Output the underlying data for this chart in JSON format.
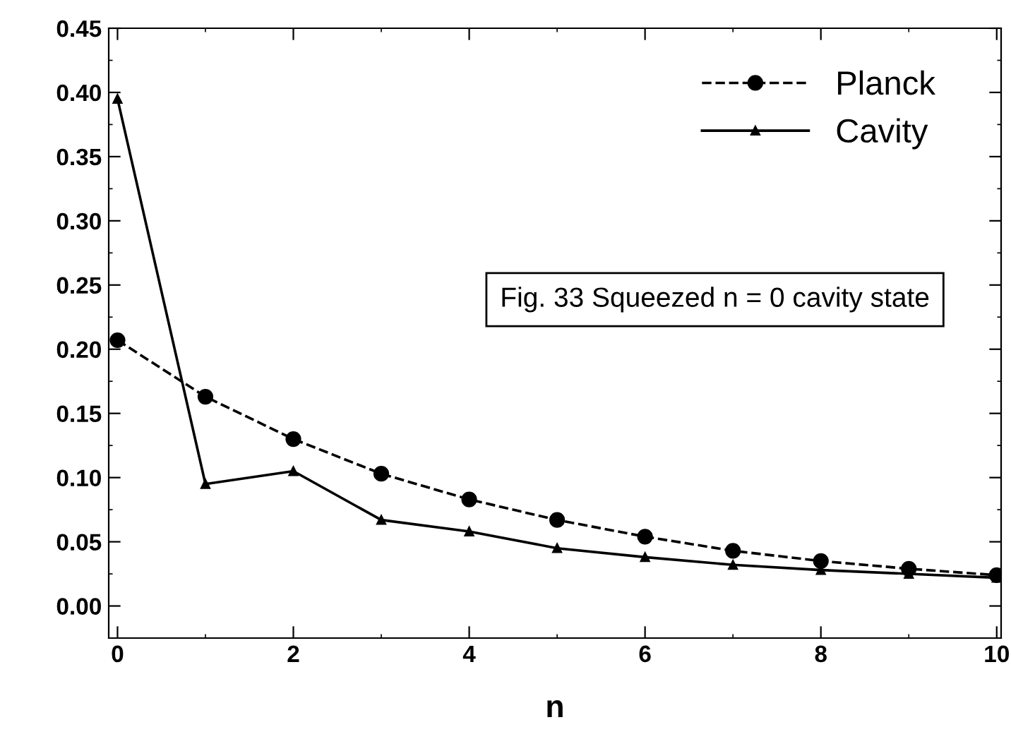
{
  "chart_data": {
    "type": "line",
    "xlabel": "n",
    "x": [
      0,
      1,
      2,
      3,
      4,
      5,
      6,
      7,
      8,
      9,
      10
    ],
    "series": [
      {
        "name": "Planck",
        "color": "#000000",
        "line_style": "dashed",
        "marker": "circle",
        "values": [
          0.207,
          0.163,
          0.13,
          0.103,
          0.083,
          0.067,
          0.054,
          0.043,
          0.035,
          0.029,
          0.024
        ]
      },
      {
        "name": "Cavity",
        "color": "#000000",
        "line_style": "solid",
        "marker": "triangle",
        "values": [
          0.395,
          0.095,
          0.105,
          0.067,
          0.058,
          0.045,
          0.038,
          0.032,
          0.028,
          0.025,
          0.022
        ]
      }
    ],
    "xlim": [
      -0.1,
      10.05
    ],
    "xticks": [
      0,
      2,
      4,
      6,
      8,
      10
    ],
    "ylim": [
      -0.025,
      0.45
    ],
    "yticks": [
      {
        "value": 0,
        "label": "0.00"
      },
      {
        "value": 0.05,
        "label": "0.05"
      },
      {
        "value": 0.1,
        "label": "0.10"
      },
      {
        "value": 0.15,
        "label": "0.15"
      },
      {
        "value": 0.2,
        "label": "0.20"
      },
      {
        "value": 0.25,
        "label": "0.25"
      },
      {
        "value": 0.3,
        "label": "0.30"
      },
      {
        "value": 0.35,
        "label": "0.35"
      },
      {
        "value": 0.4,
        "label": "0.40"
      },
      {
        "value": 0.45,
        "label": "0.45"
      }
    ],
    "legend": "top right",
    "grid": false,
    "annotations": [
      "Fig. 33 Squeezed n = 0 cavity state"
    ]
  }
}
